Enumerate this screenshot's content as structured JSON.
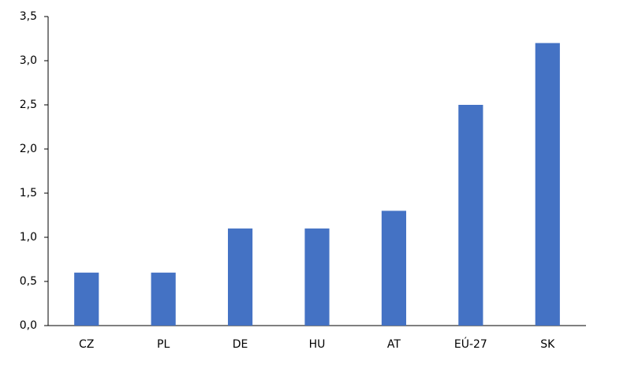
{
  "chart_data": {
    "type": "bar",
    "categories": [
      "CZ",
      "PL",
      "DE",
      "HU",
      "AT",
      "EÚ-27",
      "SK"
    ],
    "values": [
      0.6,
      0.6,
      1.1,
      1.1,
      1.3,
      2.5,
      3.2
    ],
    "color": "#4472c4",
    "ylim": [
      0,
      3.5
    ],
    "yticks": [
      {
        "value": 0,
        "label": "0,0"
      },
      {
        "value": 0.5,
        "label": "0,5"
      },
      {
        "value": 1,
        "label": "1,0"
      },
      {
        "value": 1.5,
        "label": "1,5"
      },
      {
        "value": 2,
        "label": "2,0"
      },
      {
        "value": 2.5,
        "label": "2,5"
      },
      {
        "value": 3,
        "label": "3,0"
      },
      {
        "value": 3.5,
        "label": "3,5"
      }
    ],
    "grid": false
  }
}
